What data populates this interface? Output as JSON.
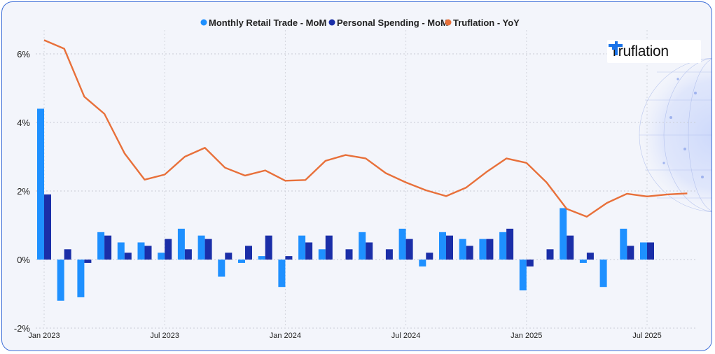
{
  "chart_data": {
    "type": "bar+line",
    "legend_position": "top-center",
    "legend": [
      {
        "name": "Monthly Retail Trade - MoM",
        "color": "#1e90ff"
      },
      {
        "name": "Personal Spending - MoM",
        "color": "#1a2ea8"
      },
      {
        "name": "Truflation - YoY",
        "color": "#e8703a"
      }
    ],
    "y_ticks": [
      {
        "value": 6,
        "label": "6%"
      },
      {
        "value": 4,
        "label": "4%"
      },
      {
        "value": 2,
        "label": "2%"
      },
      {
        "value": 0,
        "label": "0%"
      },
      {
        "value": -2,
        "label": "-2%"
      }
    ],
    "ylim": [
      -2,
      6.6
    ],
    "x_ticks": [
      {
        "index": 0,
        "label": "Jan 2023"
      },
      {
        "index": 6,
        "label": "Jul 2023"
      },
      {
        "index": 12,
        "label": "Jan 2024"
      },
      {
        "index": 18,
        "label": "Jul 2024"
      },
      {
        "index": 24,
        "label": "Jan 2025"
      },
      {
        "index": 30,
        "label": "Jul 2025"
      }
    ],
    "months": [
      "Jan 2023",
      "Feb 2023",
      "Mar 2023",
      "Apr 2023",
      "May 2023",
      "Jun 2023",
      "Jul 2023",
      "Aug 2023",
      "Sep 2023",
      "Oct 2023",
      "Nov 2023",
      "Dec 2023",
      "Jan 2024",
      "Feb 2024",
      "Mar 2024",
      "Apr 2024",
      "May 2024",
      "Jun 2024",
      "Jul 2024",
      "Aug 2024",
      "Sep 2024",
      "Oct 2024",
      "Nov 2024",
      "Dec 2024",
      "Jan 2025",
      "Feb 2025",
      "Mar 2025",
      "Apr 2025",
      "May 2025",
      "Jun 2025",
      "Jul 2025",
      "Aug 2025",
      "Sep 2025"
    ],
    "series": [
      {
        "name": "Monthly Retail Trade - MoM",
        "kind": "bar",
        "values": [
          4.4,
          -1.2,
          -1.1,
          0.8,
          0.5,
          0.5,
          0.2,
          0.9,
          0.7,
          -0.5,
          -0.1,
          0.1,
          -0.8,
          0.7,
          0.3,
          0.0,
          0.8,
          0.0,
          0.9,
          -0.2,
          0.8,
          0.6,
          0.6,
          0.8,
          -0.9,
          0.0,
          1.5,
          -0.1,
          -0.8,
          0.9,
          0.5,
          null,
          null
        ]
      },
      {
        "name": "Personal Spending - MoM",
        "kind": "bar",
        "values": [
          1.9,
          0.3,
          -0.1,
          0.7,
          0.2,
          0.4,
          0.6,
          0.3,
          0.6,
          0.2,
          0.4,
          0.7,
          0.1,
          0.5,
          0.7,
          0.3,
          0.5,
          0.3,
          0.6,
          0.2,
          0.7,
          0.4,
          0.6,
          0.9,
          -0.2,
          0.3,
          0.7,
          0.2,
          0.0,
          0.4,
          0.5,
          null,
          null
        ]
      },
      {
        "name": "Truflation - YoY",
        "kind": "line",
        "values": [
          6.4,
          6.15,
          4.75,
          4.25,
          3.1,
          2.33,
          2.48,
          3.0,
          3.26,
          2.68,
          2.45,
          2.6,
          2.3,
          2.32,
          2.88,
          3.05,
          2.95,
          2.52,
          2.25,
          2.02,
          1.85,
          2.1,
          2.55,
          2.95,
          2.82,
          2.25,
          1.48,
          1.25,
          1.65,
          1.92,
          1.84,
          1.9,
          1.93
        ]
      }
    ]
  },
  "brand": {
    "name": "Truflation",
    "logo_color": "#1a73e8"
  }
}
